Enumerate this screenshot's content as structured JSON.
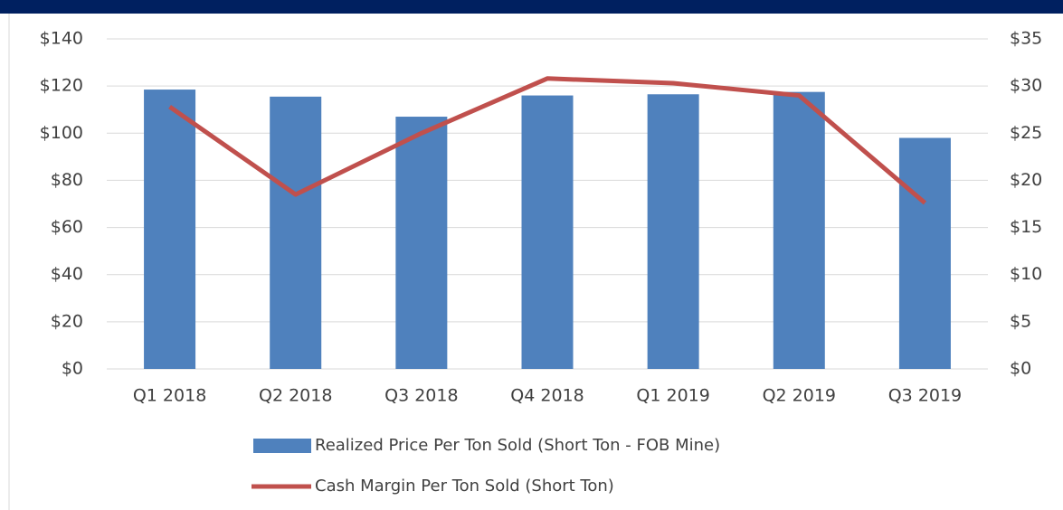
{
  "chart_data": {
    "type": "bar+line",
    "categories": [
      "Q1 2018",
      "Q2 2018",
      "Q3 2018",
      "Q4 2018",
      "Q1 2019",
      "Q2 2019",
      "Q3 2019"
    ],
    "series": [
      {
        "name": "Realized Price Per Ton Sold (Short Ton - FOB Mine)",
        "type": "bar",
        "color": "#4f81bd",
        "values": [
          118.5,
          115.5,
          107,
          116,
          116.5,
          117.5,
          98
        ]
      },
      {
        "name": "Cash Margin Per Ton Sold (Short Ton)",
        "type": "line",
        "axis": "y2",
        "color": "#c0504d",
        "values": [
          27.8,
          18.5,
          25,
          30.8,
          30.3,
          29,
          17.6
        ]
      }
    ],
    "ylim": [
      0,
      140
    ],
    "yticks": [
      {
        "value": 0,
        "label": "$0"
      },
      {
        "value": 20,
        "label": "$20"
      },
      {
        "value": 40,
        "label": "$40"
      },
      {
        "value": 60,
        "label": "$60"
      },
      {
        "value": 80,
        "label": "$80"
      },
      {
        "value": 100,
        "label": "$100"
      },
      {
        "value": 120,
        "label": "$120"
      },
      {
        "value": 140,
        "label": "$140"
      }
    ],
    "y2lim": [
      0,
      35
    ],
    "y2ticks": [
      {
        "value": 0,
        "label": "$0"
      },
      {
        "value": 5,
        "label": "$5"
      },
      {
        "value": 10,
        "label": "$10"
      },
      {
        "value": 15,
        "label": "$15"
      },
      {
        "value": 20,
        "label": "$20"
      },
      {
        "value": 25,
        "label": "$25"
      },
      {
        "value": 30,
        "label": "$30"
      },
      {
        "value": 35,
        "label": "$35"
      }
    ],
    "grid": true,
    "legend": "bottom"
  }
}
